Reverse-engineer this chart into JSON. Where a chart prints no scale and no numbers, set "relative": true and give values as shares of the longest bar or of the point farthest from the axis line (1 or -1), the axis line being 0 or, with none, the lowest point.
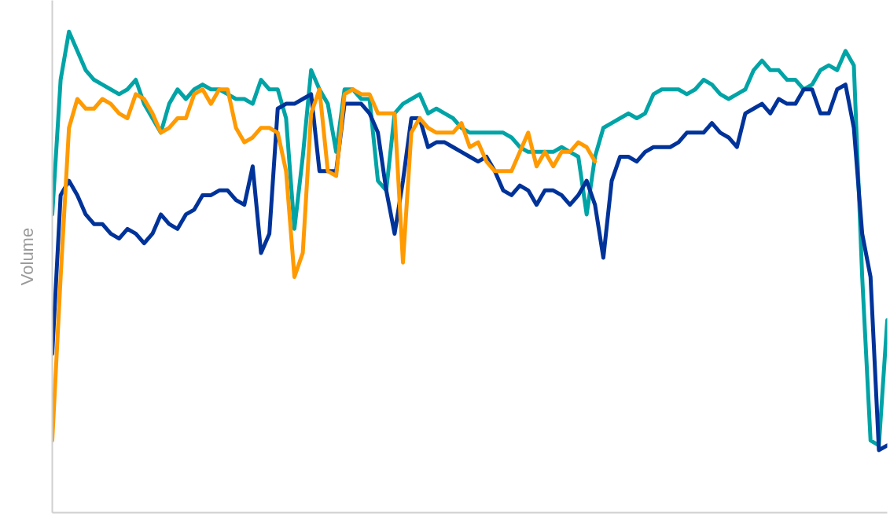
{
  "chart_data": {
    "type": "line",
    "relative": true,
    "ylabel": "Volume",
    "categories": [
      null,
      null,
      null,
      null,
      null,
      null,
      null,
      null,
      null,
      null,
      null,
      null,
      null,
      null,
      null,
      null,
      null,
      null,
      null,
      null,
      null,
      null,
      null,
      null,
      null,
      null,
      null,
      null,
      null,
      null,
      null,
      null,
      null,
      null,
      null,
      null,
      null,
      null,
      null,
      null,
      null,
      null,
      null,
      null,
      null,
      null,
      null,
      null,
      null,
      null,
      null,
      null,
      null,
      null,
      null,
      null,
      null,
      null,
      null,
      null,
      null,
      null,
      null,
      null,
      null,
      null,
      null,
      null,
      null,
      null,
      null,
      null,
      null,
      null,
      null,
      null,
      null,
      null,
      null,
      null,
      null,
      null,
      null,
      null,
      null,
      null,
      null,
      null,
      null,
      null,
      null,
      null,
      null,
      null,
      null,
      null,
      null,
      null,
      null,
      null,
      null
    ],
    "series": [
      {
        "color": "#00a4a6",
        "values": [
          0.62,
          0.9,
          1.0,
          0.96,
          0.92,
          0.9,
          0.89,
          0.88,
          0.87,
          0.88,
          0.9,
          0.85,
          0.82,
          0.79,
          0.85,
          0.88,
          0.86,
          0.88,
          0.89,
          0.88,
          0.88,
          0.87,
          0.86,
          0.86,
          0.85,
          0.9,
          0.88,
          0.88,
          0.82,
          0.59,
          0.74,
          0.92,
          0.88,
          0.85,
          0.75,
          0.88,
          0.88,
          0.86,
          0.86,
          0.69,
          0.67,
          0.83,
          0.85,
          0.86,
          0.87,
          0.83,
          0.84,
          0.83,
          0.82,
          0.8,
          0.79,
          0.79,
          0.79,
          0.79,
          0.79,
          0.78,
          0.76,
          0.75,
          0.75,
          0.75,
          0.75,
          0.76,
          0.75,
          0.74,
          0.62,
          0.74,
          0.8,
          0.81,
          0.82,
          0.83,
          0.82,
          0.83,
          0.87,
          0.88,
          0.88,
          0.88,
          0.87,
          0.88,
          0.9,
          0.89,
          0.87,
          0.86,
          0.87,
          0.88,
          0.92,
          0.94,
          0.92,
          0.92,
          0.9,
          0.9,
          0.88,
          0.89,
          0.92,
          0.93,
          0.92,
          0.96,
          0.93,
          0.49,
          0.15,
          0.14,
          0.4
        ]
      },
      {
        "color": "#00339a",
        "values": [
          0.33,
          0.66,
          0.69,
          0.66,
          0.62,
          0.6,
          0.6,
          0.58,
          0.57,
          0.59,
          0.58,
          0.56,
          0.58,
          0.62,
          0.6,
          0.59,
          0.62,
          0.63,
          0.66,
          0.66,
          0.67,
          0.67,
          0.65,
          0.64,
          0.72,
          0.54,
          0.58,
          0.84,
          0.85,
          0.85,
          0.86,
          0.87,
          0.71,
          0.71,
          0.71,
          0.85,
          0.85,
          0.85,
          0.83,
          0.79,
          0.67,
          0.58,
          0.69,
          0.82,
          0.82,
          0.76,
          0.77,
          0.77,
          0.76,
          0.75,
          0.74,
          0.73,
          0.74,
          0.71,
          0.67,
          0.66,
          0.68,
          0.67,
          0.64,
          0.67,
          0.67,
          0.66,
          0.64,
          0.66,
          0.69,
          0.64,
          0.53,
          0.69,
          0.74,
          0.74,
          0.73,
          0.75,
          0.76,
          0.76,
          0.76,
          0.77,
          0.79,
          0.79,
          0.79,
          0.81,
          0.79,
          0.78,
          0.76,
          0.83,
          0.84,
          0.85,
          0.83,
          0.86,
          0.85,
          0.85,
          0.88,
          0.88,
          0.83,
          0.83,
          0.88,
          0.89,
          0.8,
          0.58,
          0.49,
          0.13,
          0.14
        ]
      },
      {
        "color": "#ff9a00",
        "values": [
          0.15,
          0.49,
          0.8,
          0.86,
          0.84,
          0.84,
          0.86,
          0.85,
          0.83,
          0.82,
          0.87,
          0.86,
          0.83,
          0.79,
          0.8,
          0.82,
          0.82,
          0.87,
          0.88,
          0.85,
          0.88,
          0.88,
          0.8,
          0.77,
          0.78,
          0.8,
          0.8,
          0.79,
          0.71,
          0.49,
          0.54,
          0.83,
          0.88,
          0.71,
          0.7,
          0.87,
          0.88,
          0.87,
          0.87,
          0.83,
          0.83,
          0.83,
          0.52,
          0.79,
          0.82,
          0.8,
          0.79,
          0.79,
          0.79,
          0.81,
          0.76,
          0.77,
          0.73,
          0.71,
          0.71,
          0.71,
          0.75,
          0.79,
          0.72,
          0.75,
          0.72,
          0.75,
          0.75,
          0.77,
          0.76,
          0.73,
          null,
          null,
          null,
          null,
          null,
          null,
          null,
          null,
          null,
          null,
          null,
          null,
          null,
          null,
          null,
          null,
          null,
          null,
          null,
          null,
          null,
          null,
          null,
          null,
          null,
          null,
          null,
          null,
          null,
          null,
          null,
          null,
          null,
          null,
          null
        ]
      }
    ]
  }
}
